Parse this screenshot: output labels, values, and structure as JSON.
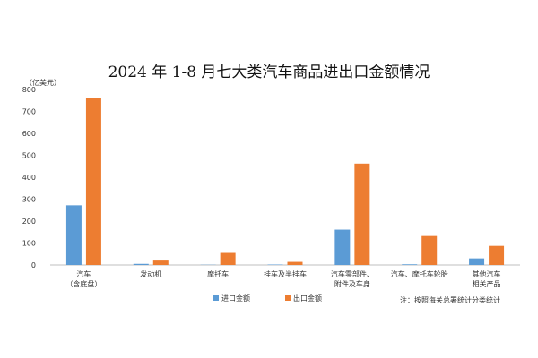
{
  "chart_data": {
    "type": "bar",
    "title": "2024 年 1-8 月七大类汽车商品进出口金额情况",
    "unit_label": "（亿美元）",
    "categories": [
      [
        "汽车",
        "（含底盘）"
      ],
      [
        "发动机"
      ],
      [
        "摩托车"
      ],
      [
        "挂车及半挂车"
      ],
      [
        "汽车零部件、",
        "附件及车身"
      ],
      [
        "汽车、摩托车轮胎"
      ],
      [
        "其他汽车",
        "相关产品"
      ]
    ],
    "series": [
      {
        "name": "进口金额",
        "color": "#5b9bd5",
        "values": [
          272,
          5,
          1,
          2,
          161,
          3,
          30
        ]
      },
      {
        "name": "出口金额",
        "color": "#ed7d31",
        "values": [
          762,
          20,
          55,
          14,
          462,
          132,
          87
        ]
      }
    ],
    "ylim": [
      0,
      800
    ],
    "yticks": [
      0,
      100,
      200,
      300,
      400,
      500,
      600,
      700,
      800
    ],
    "grid": false,
    "legend_position": "bottom",
    "note": "注：按照海关总署统计分类统计"
  }
}
